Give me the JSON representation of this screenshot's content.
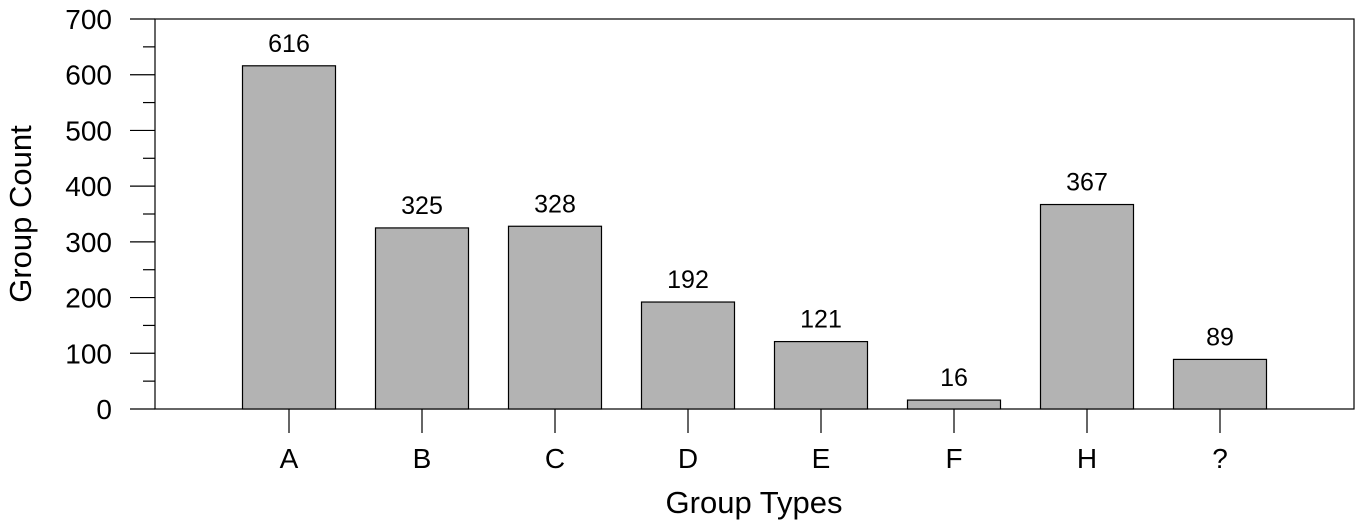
{
  "chart_data": {
    "type": "bar",
    "categories": [
      "A",
      "B",
      "C",
      "D",
      "E",
      "F",
      "H",
      "?"
    ],
    "values": [
      616,
      325,
      328,
      192,
      121,
      16,
      367,
      89
    ],
    "data_labels": [
      "616",
      "325",
      "328",
      "192",
      "121",
      "16",
      "367",
      "89"
    ],
    "title": "",
    "xlabel": "Group Types",
    "ylabel": "Group Count",
    "ylim": [
      0,
      700
    ],
    "yticks": [
      0,
      100,
      200,
      300,
      400,
      500,
      600,
      700
    ],
    "ytick_labels": [
      "0",
      "100",
      "200",
      "300",
      "400",
      "500",
      "600",
      "700"
    ],
    "grid": false,
    "bar_color": "#b3b3b3",
    "edge_color": "#000000"
  }
}
